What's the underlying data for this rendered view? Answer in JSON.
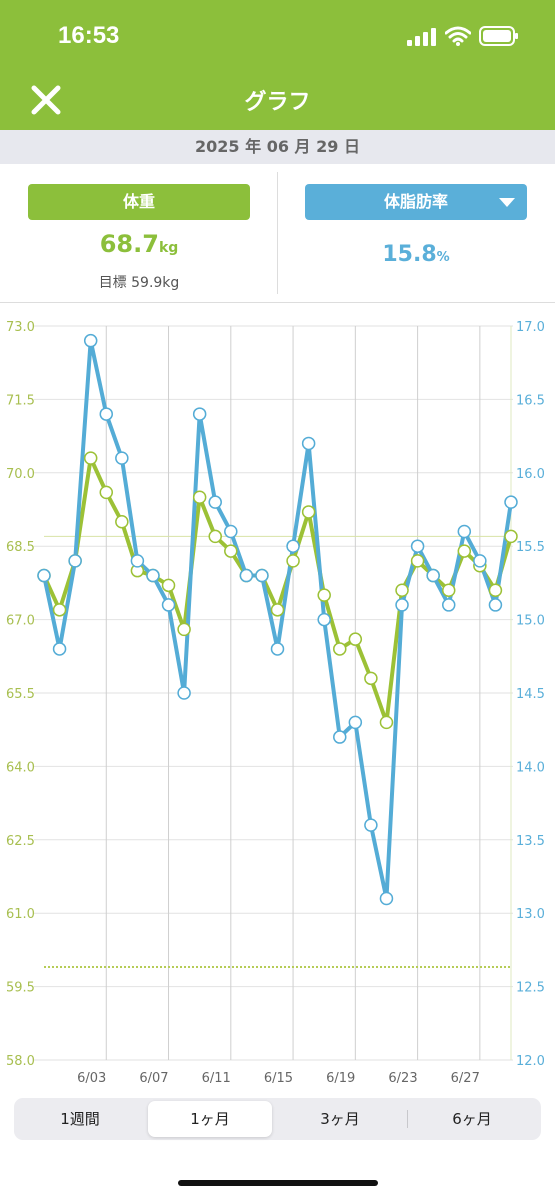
{
  "status": {
    "time": "16:53"
  },
  "nav": {
    "title": "グラフ"
  },
  "date": "2025 年 06 月 29 日",
  "metrics": {
    "weight": {
      "label": "体重",
      "value": "68.7",
      "unit": "kg",
      "goal": "目標 59.9kg"
    },
    "fat": {
      "label": "体脂肪率",
      "value": "15.8",
      "unit": "%"
    }
  },
  "colors": {
    "accent": "#8cbf3b",
    "blue": "#5aafd9",
    "weight_line": "#9cc136",
    "fat_line": "#54acd6"
  },
  "chart_data": {
    "type": "line",
    "x": [
      "5/30",
      "5/31",
      "6/01",
      "6/02",
      "6/03",
      "6/04",
      "6/05",
      "6/06",
      "6/07",
      "6/08",
      "6/09",
      "6/10",
      "6/11",
      "6/12",
      "6/13",
      "6/14",
      "6/15",
      "6/16",
      "6/17",
      "6/18",
      "6/19",
      "6/20",
      "6/21",
      "6/22",
      "6/23",
      "6/24",
      "6/25",
      "6/26",
      "6/27",
      "6/28",
      "6/29"
    ],
    "x_tick_labels": [
      "6/03",
      "6/07",
      "6/11",
      "6/15",
      "6/19",
      "6/23",
      "6/27"
    ],
    "series": [
      {
        "name": "体重",
        "axis": "left",
        "values": [
          67.9,
          67.2,
          68.2,
          70.3,
          69.6,
          69.0,
          68.0,
          67.9,
          67.7,
          66.8,
          69.5,
          68.7,
          68.4,
          67.9,
          67.9,
          67.2,
          68.2,
          69.2,
          67.5,
          66.4,
          66.6,
          65.8,
          64.9,
          67.6,
          68.2,
          67.9,
          67.6,
          68.4,
          68.1,
          67.6,
          68.7
        ]
      },
      {
        "name": "体脂肪率",
        "axis": "right",
        "values": [
          15.3,
          14.8,
          15.4,
          16.9,
          16.4,
          16.1,
          15.4,
          15.3,
          15.1,
          14.5,
          16.4,
          15.8,
          15.6,
          15.3,
          15.3,
          14.8,
          15.5,
          16.2,
          15.0,
          14.2,
          14.3,
          13.6,
          13.1,
          15.1,
          15.5,
          15.3,
          15.1,
          15.6,
          15.4,
          15.1,
          15.8
        ]
      }
    ],
    "y_left": {
      "ylim": [
        58.0,
        73.0
      ],
      "ticks": [
        "73.0",
        "71.5",
        "70.0",
        "68.5",
        "67.0",
        "65.5",
        "64.0",
        "62.5",
        "61.0",
        "59.5",
        "58.0"
      ]
    },
    "y_right": {
      "ylim": [
        12.0,
        17.0
      ],
      "ticks": [
        "17.0",
        "16.5",
        "16.0",
        "15.5",
        "15.0",
        "14.5",
        "14.0",
        "13.5",
        "13.0",
        "12.5",
        "12.0"
      ]
    },
    "reference_lines": [
      {
        "axis": "left",
        "value": 68.7,
        "style": "solid"
      },
      {
        "axis": "left",
        "value": 59.9,
        "style": "dotted"
      }
    ],
    "grid": true
  },
  "tabs": [
    "1週間",
    "1ヶ月",
    "3ヶ月",
    "6ヶ月"
  ],
  "selected_tab": "1ヶ月"
}
